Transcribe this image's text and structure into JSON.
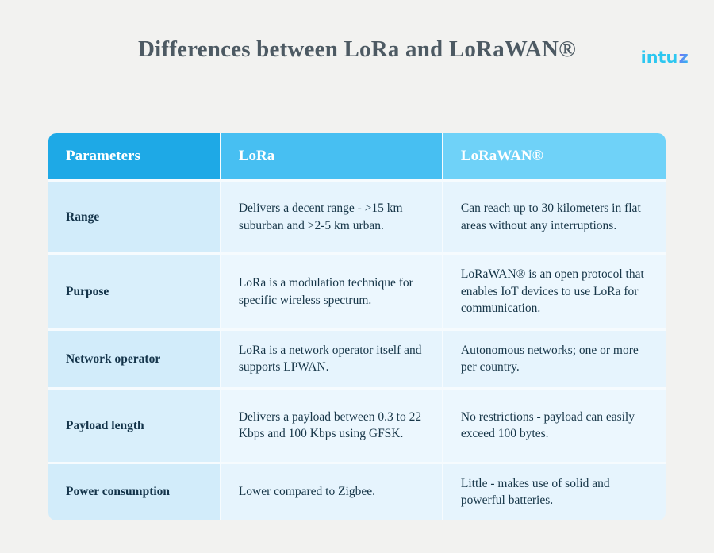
{
  "logo": {
    "text_main": "intu",
    "text_accent": "z"
  },
  "title": "Differences between LoRa and LoRaWAN®",
  "colors": {
    "page_bg": "#f2f2f0",
    "header_parameters_bg": "#1ea9e6",
    "header_lora_bg": "#47bff2",
    "header_lorawan_bg": "#6fd2f8",
    "param_col_bg": "#d2ecfa",
    "content_col_bg": "#e6f4fd",
    "body_text": "#173648",
    "title_text": "#4d5a63",
    "logo_cyan": "#2dc7f0",
    "logo_purple": "#8b5cf6"
  },
  "table": {
    "headers": [
      "Parameters",
      "LoRa",
      "LoRaWAN®"
    ],
    "rows": [
      {
        "param": "Range",
        "lora": "Delivers a decent range - >15 km suburban and >2-5 km urban.",
        "lorawan": "Can reach up to 30 kilometers in flat areas without any interruptions."
      },
      {
        "param": "Purpose",
        "lora": "LoRa is a modulation technique for specific wireless spectrum.",
        "lorawan": "LoRaWAN® is an open protocol that enables IoT devices to use LoRa for communication."
      },
      {
        "param": "Network operator",
        "lora": "LoRa is a network operator itself and supports LPWAN.",
        "lorawan": "Autonomous networks; one or more per country."
      },
      {
        "param": "Payload length",
        "lora": "Delivers a payload between 0.3 to 22 Kbps and 100 Kbps using GFSK.",
        "lorawan": "No restrictions - payload can easily exceed 100 bytes."
      },
      {
        "param": "Power consumption",
        "lora": "Lower compared to Zigbee.",
        "lorawan": "Little - makes use of solid and powerful batteries."
      }
    ]
  },
  "chart_data": {
    "type": "table",
    "title": "Differences between LoRa and LoRaWAN®",
    "columns": [
      "Parameters",
      "LoRa",
      "LoRaWAN®"
    ],
    "rows": [
      [
        "Range",
        "Delivers a decent range - >15 km suburban and >2-5 km urban.",
        "Can reach up to 30 kilometers in flat areas without any interruptions."
      ],
      [
        "Purpose",
        "LoRa is a modulation technique for specific wireless spectrum.",
        "LoRaWAN® is an open protocol that enables IoT devices to use LoRa for communication."
      ],
      [
        "Network operator",
        "LoRa is a network operator itself and supports LPWAN.",
        "Autonomous networks; one or more per country."
      ],
      [
        "Payload length",
        "Delivers a payload between 0.3 to 22 Kbps and 100 Kbps using GFSK.",
        "No restrictions - payload can easily exceed 100 bytes."
      ],
      [
        "Power consumption",
        "Lower compared to Zigbee.",
        "Little - makes use of solid and powerful batteries."
      ]
    ]
  }
}
